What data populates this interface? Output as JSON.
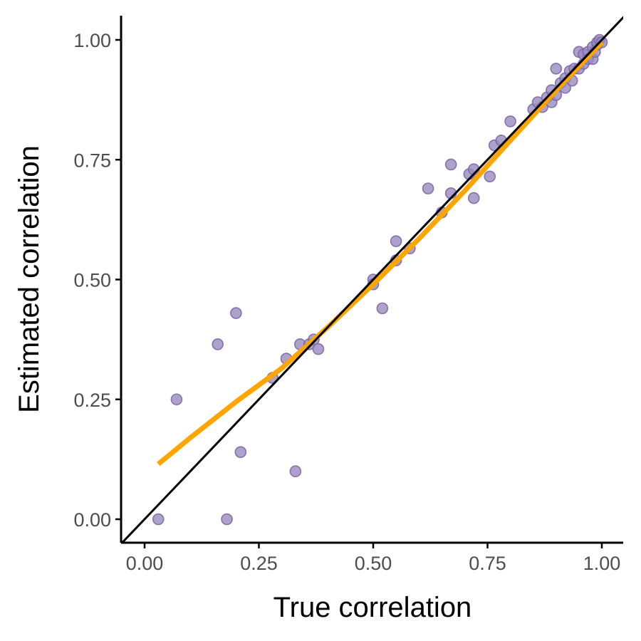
{
  "chart_data": {
    "type": "scatter",
    "xlabel": "True correlation",
    "ylabel": "Estimated correlation",
    "xlim": [
      -0.05,
      1.05
    ],
    "ylim": [
      -0.05,
      1.05
    ],
    "x_ticks": [
      0.0,
      0.25,
      0.5,
      0.75,
      1.0
    ],
    "x_tick_labels": [
      "0.00",
      "0.25",
      "0.50",
      "0.75",
      "1.00"
    ],
    "y_ticks": [
      0.0,
      0.25,
      0.5,
      0.75,
      1.0
    ],
    "y_tick_labels": [
      "0.00",
      "0.25",
      "0.50",
      "0.75",
      "1.00"
    ],
    "grid": false,
    "legend": "none",
    "colors": {
      "points": "#9a8bbd",
      "points_edge": "#7a68a8",
      "smooth": "#ffa500",
      "identity": "#000000",
      "axis": "#000000"
    },
    "series": [
      {
        "type": "scatter",
        "x": [
          0.03,
          0.07,
          0.16,
          0.18,
          0.2,
          0.21,
          0.28,
          0.31,
          0.33,
          0.34,
          0.36,
          0.37,
          0.38,
          0.5,
          0.5,
          0.52,
          0.55,
          0.55,
          0.58,
          0.62,
          0.65,
          0.67,
          0.67,
          0.71,
          0.72,
          0.72,
          0.755,
          0.765,
          0.78,
          0.8,
          0.85,
          0.86,
          0.87,
          0.88,
          0.89,
          0.89,
          0.9,
          0.9,
          0.91,
          0.92,
          0.92,
          0.93,
          0.935,
          0.94,
          0.95,
          0.95,
          0.96,
          0.96,
          0.97,
          0.97,
          0.98,
          0.98,
          0.985,
          0.99,
          0.99,
          0.995,
          1.0
        ],
        "y": [
          0.0,
          0.25,
          0.365,
          0.0,
          0.43,
          0.14,
          0.295,
          0.335,
          0.1,
          0.365,
          0.365,
          0.375,
          0.355,
          0.5,
          0.49,
          0.44,
          0.54,
          0.58,
          0.565,
          0.69,
          0.64,
          0.74,
          0.68,
          0.72,
          0.67,
          0.73,
          0.715,
          0.78,
          0.79,
          0.83,
          0.855,
          0.87,
          0.86,
          0.88,
          0.895,
          0.87,
          0.94,
          0.885,
          0.91,
          0.92,
          0.9,
          0.935,
          0.915,
          0.94,
          0.94,
          0.975,
          0.95,
          0.97,
          0.975,
          0.96,
          0.96,
          0.985,
          0.975,
          0.99,
          0.995,
          1.0,
          0.995
        ]
      },
      {
        "type": "line",
        "role": "smooth",
        "x": [
          0.03,
          0.1,
          0.2,
          0.3,
          0.4,
          0.5,
          0.6,
          0.7,
          0.8,
          0.9,
          1.0
        ],
        "y": [
          0.115,
          0.17,
          0.245,
          0.315,
          0.4,
          0.49,
          0.585,
          0.685,
          0.79,
          0.895,
          0.995
        ]
      },
      {
        "type": "line",
        "role": "identity",
        "x": [
          -0.05,
          1.05
        ],
        "y": [
          -0.05,
          1.05
        ]
      }
    ]
  }
}
